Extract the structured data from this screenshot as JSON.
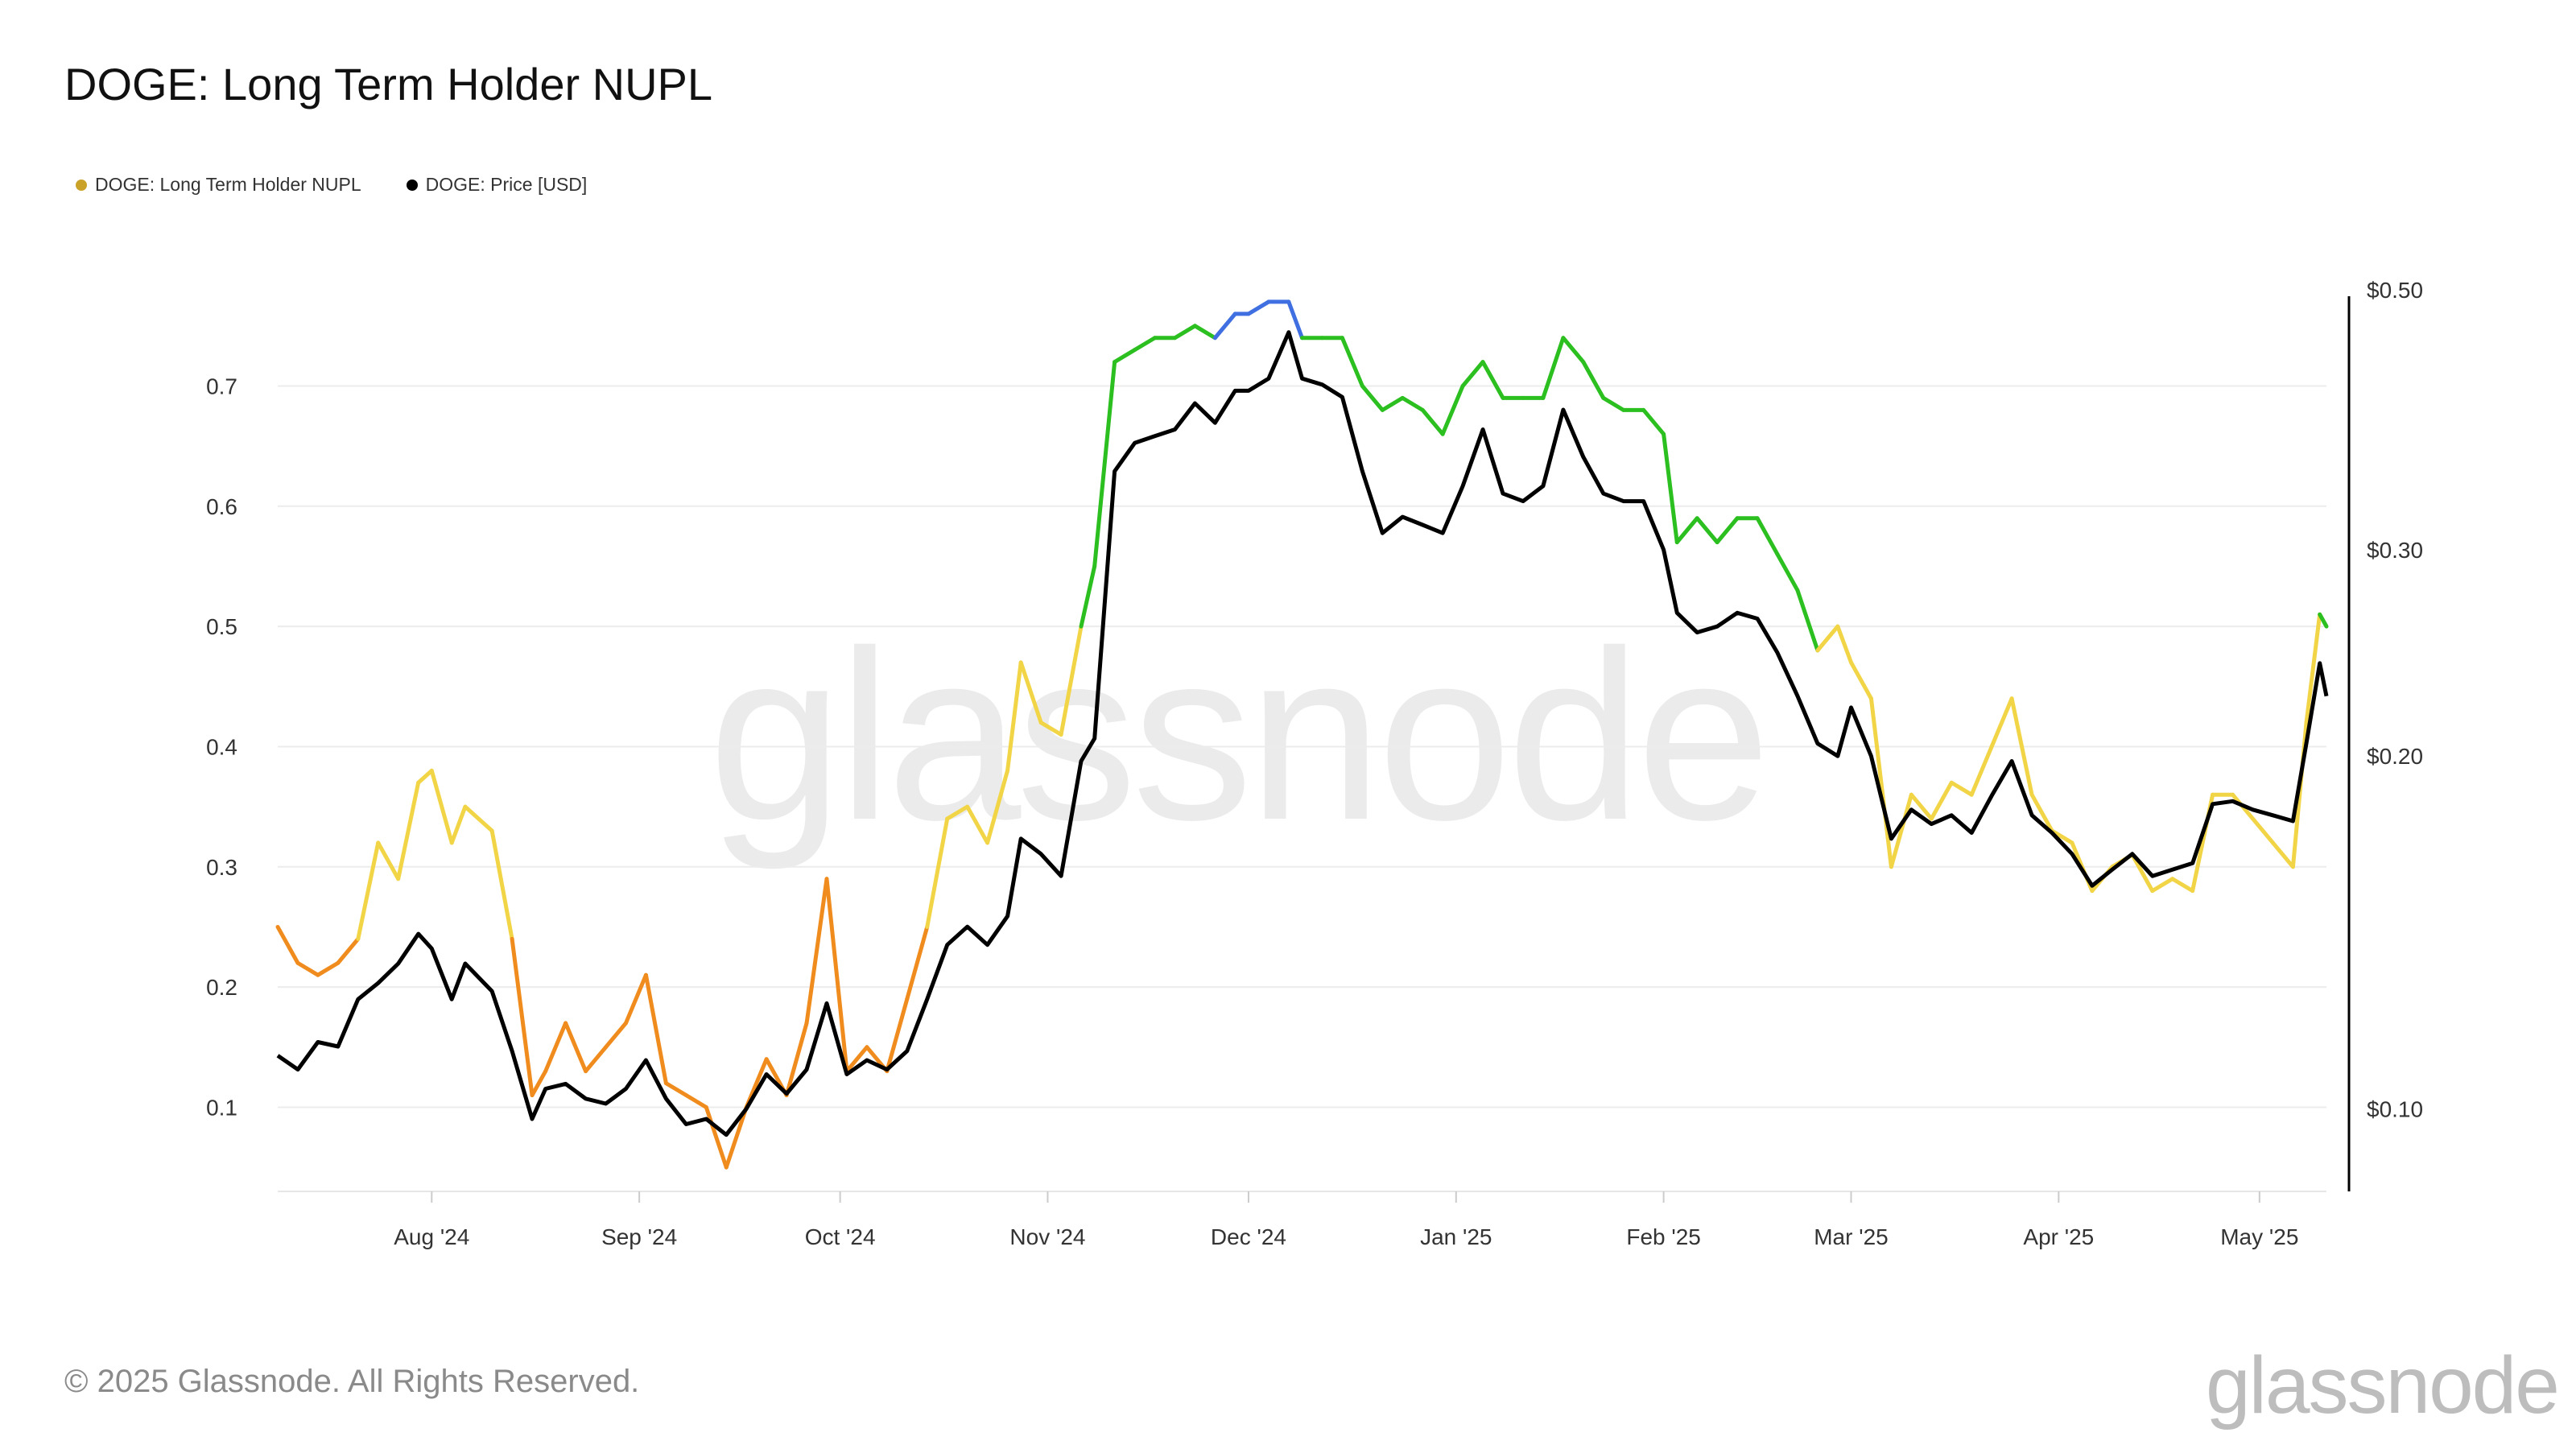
{
  "header": {
    "title": "DOGE: Long Term Holder NUPL"
  },
  "legend": [
    {
      "label": "DOGE: Long Term Holder NUPL",
      "color": "#c9a227"
    },
    {
      "label": "DOGE: Price [USD]",
      "color": "#000000"
    }
  ],
  "watermark": "glassnode",
  "footer": {
    "copyright": "© 2025 Glassnode. All Rights Reserved.",
    "brand": "glassnode"
  },
  "chart_data": {
    "type": "line",
    "title": "DOGE: Long Term Holder NUPL",
    "x_ticks": [
      "Aug '24",
      "Sep '24",
      "Oct '24",
      "Nov '24",
      "Dec '24",
      "Jan '25",
      "Feb '25",
      "Mar '25",
      "Apr '25",
      "May '25"
    ],
    "x_range": [
      "2024-07-09",
      "2025-05-11"
    ],
    "y_left": {
      "ticks": [
        0.1,
        0.2,
        0.3,
        0.4,
        0.5,
        0.6,
        0.7
      ],
      "ylim": [
        0.03,
        0.78
      ]
    },
    "y_right": {
      "ticks": [
        "$0.10",
        "$0.20",
        "$0.30",
        "$0.50"
      ],
      "tick_values": [
        0.1,
        0.2,
        0.3,
        0.5
      ],
      "scale": "log",
      "ylim": [
        0.085,
        0.5
      ]
    },
    "grid": "horizontal",
    "nupl_zone_colors": {
      "below_0.25": "#f08c1e",
      "0.25_to_0.5": "#f2d547",
      "0.5_to_0.75": "#2bbf1f",
      "above_0.75": "#3f6fe0"
    },
    "series": [
      {
        "name": "DOGE: Long Term Holder NUPL",
        "axis": "left",
        "points": [
          [
            "2024-07-09",
            0.25
          ],
          [
            "2024-07-12",
            0.22
          ],
          [
            "2024-07-15",
            0.21
          ],
          [
            "2024-07-18",
            0.22
          ],
          [
            "2024-07-21",
            0.24
          ],
          [
            "2024-07-24",
            0.32
          ],
          [
            "2024-07-27",
            0.29
          ],
          [
            "2024-07-30",
            0.37
          ],
          [
            "2024-08-01",
            0.38
          ],
          [
            "2024-08-04",
            0.32
          ],
          [
            "2024-08-06",
            0.35
          ],
          [
            "2024-08-10",
            0.33
          ],
          [
            "2024-08-13",
            0.24
          ],
          [
            "2024-08-16",
            0.11
          ],
          [
            "2024-08-18",
            0.13
          ],
          [
            "2024-08-21",
            0.17
          ],
          [
            "2024-08-24",
            0.13
          ],
          [
            "2024-08-27",
            0.15
          ],
          [
            "2024-08-30",
            0.17
          ],
          [
            "2024-09-02",
            0.21
          ],
          [
            "2024-09-05",
            0.12
          ],
          [
            "2024-09-08",
            0.11
          ],
          [
            "2024-09-11",
            0.1
          ],
          [
            "2024-09-14",
            0.05
          ],
          [
            "2024-09-17",
            0.1
          ],
          [
            "2024-09-20",
            0.14
          ],
          [
            "2024-09-23",
            0.11
          ],
          [
            "2024-09-26",
            0.17
          ],
          [
            "2024-09-29",
            0.29
          ],
          [
            "2024-10-02",
            0.13
          ],
          [
            "2024-10-05",
            0.15
          ],
          [
            "2024-10-08",
            0.13
          ],
          [
            "2024-10-11",
            0.19
          ],
          [
            "2024-10-14",
            0.25
          ],
          [
            "2024-10-17",
            0.34
          ],
          [
            "2024-10-20",
            0.35
          ],
          [
            "2024-10-23",
            0.32
          ],
          [
            "2024-10-26",
            0.38
          ],
          [
            "2024-10-28",
            0.47
          ],
          [
            "2024-10-31",
            0.42
          ],
          [
            "2024-11-03",
            0.41
          ],
          [
            "2024-11-06",
            0.5
          ],
          [
            "2024-11-08",
            0.55
          ],
          [
            "2024-11-11",
            0.72
          ],
          [
            "2024-11-14",
            0.73
          ],
          [
            "2024-11-17",
            0.74
          ],
          [
            "2024-11-20",
            0.74
          ],
          [
            "2024-11-23",
            0.75
          ],
          [
            "2024-11-26",
            0.74
          ],
          [
            "2024-11-29",
            0.76
          ],
          [
            "2024-12-01",
            0.76
          ],
          [
            "2024-12-04",
            0.77
          ],
          [
            "2024-12-07",
            0.77
          ],
          [
            "2024-12-09",
            0.74
          ],
          [
            "2024-12-12",
            0.74
          ],
          [
            "2024-12-15",
            0.74
          ],
          [
            "2024-12-18",
            0.7
          ],
          [
            "2024-12-21",
            0.68
          ],
          [
            "2024-12-24",
            0.69
          ],
          [
            "2024-12-27",
            0.68
          ],
          [
            "2024-12-30",
            0.66
          ],
          [
            "2025-01-02",
            0.7
          ],
          [
            "2025-01-05",
            0.72
          ],
          [
            "2025-01-08",
            0.69
          ],
          [
            "2025-01-11",
            0.69
          ],
          [
            "2025-01-14",
            0.69
          ],
          [
            "2025-01-17",
            0.74
          ],
          [
            "2025-01-20",
            0.72
          ],
          [
            "2025-01-23",
            0.69
          ],
          [
            "2025-01-26",
            0.68
          ],
          [
            "2025-01-29",
            0.68
          ],
          [
            "2025-02-01",
            0.66
          ],
          [
            "2025-02-03",
            0.57
          ],
          [
            "2025-02-06",
            0.59
          ],
          [
            "2025-02-09",
            0.57
          ],
          [
            "2025-02-12",
            0.59
          ],
          [
            "2025-02-15",
            0.59
          ],
          [
            "2025-02-18",
            0.56
          ],
          [
            "2025-02-21",
            0.53
          ],
          [
            "2025-02-24",
            0.48
          ],
          [
            "2025-02-27",
            0.5
          ],
          [
            "2025-03-01",
            0.47
          ],
          [
            "2025-03-04",
            0.44
          ],
          [
            "2025-03-07",
            0.3
          ],
          [
            "2025-03-10",
            0.36
          ],
          [
            "2025-03-13",
            0.34
          ],
          [
            "2025-03-16",
            0.37
          ],
          [
            "2025-03-19",
            0.36
          ],
          [
            "2025-03-22",
            0.4
          ],
          [
            "2025-03-25",
            0.44
          ],
          [
            "2025-03-28",
            0.36
          ],
          [
            "2025-03-31",
            0.33
          ],
          [
            "2025-04-03",
            0.32
          ],
          [
            "2025-04-06",
            0.28
          ],
          [
            "2025-04-09",
            0.3
          ],
          [
            "2025-04-12",
            0.31
          ],
          [
            "2025-04-15",
            0.28
          ],
          [
            "2025-04-18",
            0.29
          ],
          [
            "2025-04-21",
            0.28
          ],
          [
            "2025-04-24",
            0.36
          ],
          [
            "2025-04-27",
            0.36
          ],
          [
            "2025-04-30",
            0.34
          ],
          [
            "2025-05-03",
            0.32
          ],
          [
            "2025-05-06",
            0.3
          ],
          [
            "2025-05-08",
            0.42
          ],
          [
            "2025-05-10",
            0.51
          ],
          [
            "2025-05-11",
            0.5
          ]
        ]
      },
      {
        "name": "DOGE: Price [USD]",
        "axis": "right",
        "points": [
          [
            "2024-07-09",
            0.111
          ],
          [
            "2024-07-12",
            0.108
          ],
          [
            "2024-07-15",
            0.114
          ],
          [
            "2024-07-18",
            0.113
          ],
          [
            "2024-07-21",
            0.124
          ],
          [
            "2024-07-24",
            0.128
          ],
          [
            "2024-07-27",
            0.133
          ],
          [
            "2024-07-30",
            0.141
          ],
          [
            "2024-08-01",
            0.137
          ],
          [
            "2024-08-04",
            0.124
          ],
          [
            "2024-08-06",
            0.133
          ],
          [
            "2024-08-10",
            0.126
          ],
          [
            "2024-08-13",
            0.112
          ],
          [
            "2024-08-16",
            0.098
          ],
          [
            "2024-08-18",
            0.104
          ],
          [
            "2024-08-21",
            0.105
          ],
          [
            "2024-08-24",
            0.102
          ],
          [
            "2024-08-27",
            0.101
          ],
          [
            "2024-08-30",
            0.104
          ],
          [
            "2024-09-02",
            0.11
          ],
          [
            "2024-09-05",
            0.102
          ],
          [
            "2024-09-08",
            0.097
          ],
          [
            "2024-09-11",
            0.098
          ],
          [
            "2024-09-14",
            0.095
          ],
          [
            "2024-09-17",
            0.1
          ],
          [
            "2024-09-20",
            0.107
          ],
          [
            "2024-09-23",
            0.103
          ],
          [
            "2024-09-26",
            0.108
          ],
          [
            "2024-09-29",
            0.123
          ],
          [
            "2024-10-02",
            0.107
          ],
          [
            "2024-10-05",
            0.11
          ],
          [
            "2024-10-08",
            0.108
          ],
          [
            "2024-10-11",
            0.112
          ],
          [
            "2024-10-14",
            0.124
          ],
          [
            "2024-10-17",
            0.138
          ],
          [
            "2024-10-20",
            0.143
          ],
          [
            "2024-10-23",
            0.138
          ],
          [
            "2024-10-26",
            0.146
          ],
          [
            "2024-10-28",
            0.17
          ],
          [
            "2024-10-31",
            0.165
          ],
          [
            "2024-11-03",
            0.158
          ],
          [
            "2024-11-06",
            0.198
          ],
          [
            "2024-11-08",
            0.207
          ],
          [
            "2024-11-11",
            0.35
          ],
          [
            "2024-11-14",
            0.37
          ],
          [
            "2024-11-17",
            0.375
          ],
          [
            "2024-11-20",
            0.38
          ],
          [
            "2024-11-23",
            0.4
          ],
          [
            "2024-11-26",
            0.385
          ],
          [
            "2024-11-29",
            0.41
          ],
          [
            "2024-12-01",
            0.41
          ],
          [
            "2024-12-04",
            0.42
          ],
          [
            "2024-12-07",
            0.46
          ],
          [
            "2024-12-09",
            0.42
          ],
          [
            "2024-12-12",
            0.415
          ],
          [
            "2024-12-15",
            0.405
          ],
          [
            "2024-12-18",
            0.35
          ],
          [
            "2024-12-21",
            0.31
          ],
          [
            "2024-12-24",
            0.32
          ],
          [
            "2024-12-27",
            0.315
          ],
          [
            "2024-12-30",
            0.31
          ],
          [
            "2025-01-02",
            0.34
          ],
          [
            "2025-01-05",
            0.38
          ],
          [
            "2025-01-08",
            0.335
          ],
          [
            "2025-01-11",
            0.33
          ],
          [
            "2025-01-14",
            0.34
          ],
          [
            "2025-01-17",
            0.395
          ],
          [
            "2025-01-20",
            0.36
          ],
          [
            "2025-01-23",
            0.335
          ],
          [
            "2025-01-26",
            0.33
          ],
          [
            "2025-01-29",
            0.33
          ],
          [
            "2025-02-01",
            0.3
          ],
          [
            "2025-02-03",
            0.265
          ],
          [
            "2025-02-06",
            0.255
          ],
          [
            "2025-02-09",
            0.258
          ],
          [
            "2025-02-12",
            0.265
          ],
          [
            "2025-02-15",
            0.262
          ],
          [
            "2025-02-18",
            0.245
          ],
          [
            "2025-02-21",
            0.225
          ],
          [
            "2025-02-24",
            0.205
          ],
          [
            "2025-02-27",
            0.2
          ],
          [
            "2025-03-01",
            0.22
          ],
          [
            "2025-03-04",
            0.2
          ],
          [
            "2025-03-07",
            0.17
          ],
          [
            "2025-03-10",
            0.18
          ],
          [
            "2025-03-13",
            0.175
          ],
          [
            "2025-03-16",
            0.178
          ],
          [
            "2025-03-19",
            0.172
          ],
          [
            "2025-03-22",
            0.185
          ],
          [
            "2025-03-25",
            0.198
          ],
          [
            "2025-03-28",
            0.178
          ],
          [
            "2025-03-31",
            0.172
          ],
          [
            "2025-04-03",
            0.165
          ],
          [
            "2025-04-06",
            0.155
          ],
          [
            "2025-04-09",
            0.16
          ],
          [
            "2025-04-12",
            0.165
          ],
          [
            "2025-04-15",
            0.158
          ],
          [
            "2025-04-18",
            0.16
          ],
          [
            "2025-04-21",
            0.162
          ],
          [
            "2025-04-24",
            0.182
          ],
          [
            "2025-04-27",
            0.183
          ],
          [
            "2025-04-30",
            0.18
          ],
          [
            "2025-05-03",
            0.178
          ],
          [
            "2025-05-06",
            0.176
          ],
          [
            "2025-05-08",
            0.205
          ],
          [
            "2025-05-10",
            0.24
          ],
          [
            "2025-05-11",
            0.225
          ]
        ]
      }
    ]
  }
}
